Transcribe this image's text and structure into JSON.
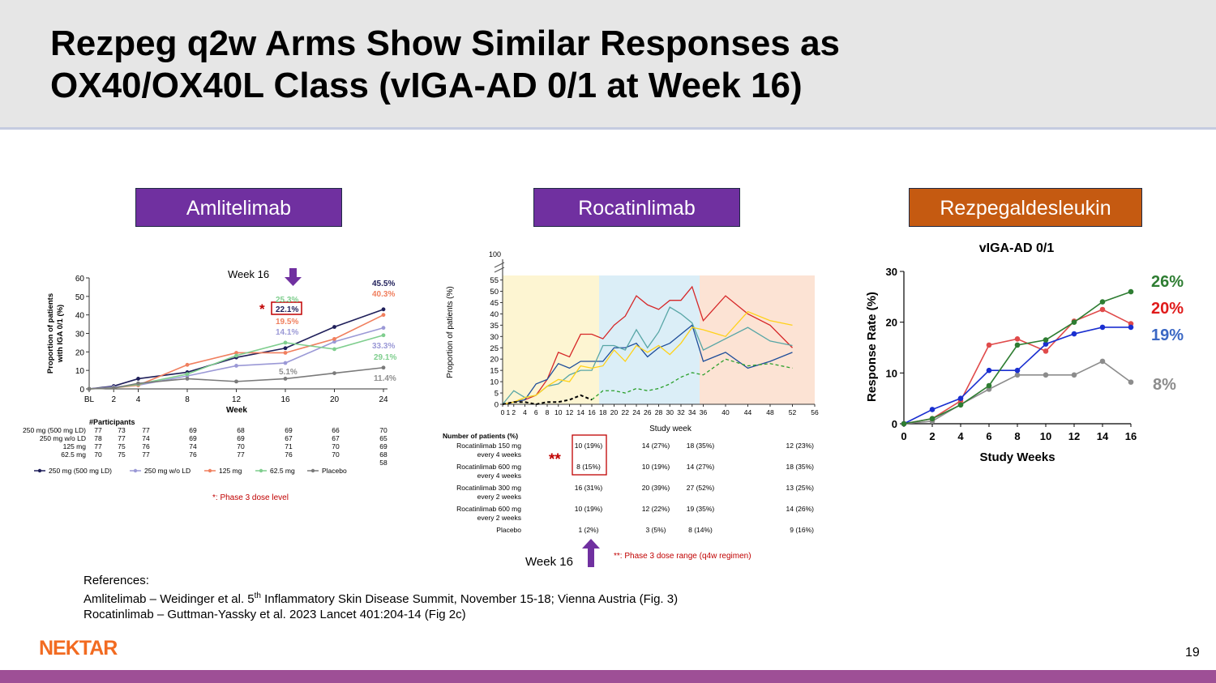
{
  "title": {
    "line1": "Rezpeg q2w Arms Show Similar Responses as",
    "line2": "OX40/OX40L Class (vIGA-AD 0/1 at Week 16)"
  },
  "panels": {
    "amlitelimab": "Amlitelimab",
    "rocatinlimab": "Rocatinlimab",
    "rezpeg": "Rezpegaldesleukin"
  },
  "colors": {
    "purple_label": "#7030a0",
    "orange_label": "#c55a11",
    "nektar": "#f26b21",
    "bottom_bar": "#9e4f96"
  },
  "amlitelimab": {
    "week16_label": "Week 16",
    "asterisk": "*",
    "ylabel_line1": "Proportion of patients",
    "ylabel_line2": "with IGA 0/1 (%)",
    "xlabel": "Week",
    "yticks": [
      "0",
      "10",
      "20",
      "30",
      "40",
      "50",
      "60"
    ],
    "xticks": [
      "BL",
      "2",
      "4",
      "8",
      "12",
      "16",
      "20",
      "24"
    ],
    "x": [
      0,
      2,
      4,
      8,
      12,
      16,
      20,
      24
    ],
    "series": [
      {
        "name": "250 mg (500 mg LD)",
        "color": "#1f1f5a",
        "values": [
          0,
          1.5,
          5.5,
          9,
          17,
          22,
          33.5,
          43
        ]
      },
      {
        "name": "250 mg w/o LD",
        "color": "#9b99d6",
        "values": [
          0,
          1,
          2,
          7,
          12.5,
          14,
          25.5,
          33
        ]
      },
      {
        "name": "125 mg",
        "color": "#f07f5e",
        "values": [
          0,
          0.5,
          2,
          13,
          19.5,
          19.5,
          27,
          40
        ]
      },
      {
        "name": "62.5 mg",
        "color": "#7fce8e",
        "values": [
          0,
          0.5,
          2.5,
          8,
          18,
          25,
          21.5,
          29
        ]
      },
      {
        "name": "Placebo",
        "color": "#7a7a7a",
        "values": [
          0,
          0.5,
          3,
          5.5,
          4,
          5.5,
          8.5,
          11.5
        ]
      }
    ],
    "w16_labels": [
      "25.3%",
      "22.1%",
      "19.5%",
      "14.1%",
      "5.1%"
    ],
    "w24_labels": [
      "45.5%",
      "40.3%",
      "33.3%",
      "29.1%",
      "11.4%"
    ],
    "participants_title": "#Participants",
    "participants": [
      {
        "label": "250 mg (500 mg LD)",
        "counts": [
          "77",
          "73",
          "77",
          "69",
          "68",
          "69",
          "66",
          "70"
        ]
      },
      {
        "label": "250 mg w/o LD",
        "counts": [
          "78",
          "77",
          "74",
          "69",
          "69",
          "67",
          "67",
          "65"
        ]
      },
      {
        "label": "125 mg",
        "counts": [
          "77",
          "75",
          "76",
          "74",
          "70",
          "71",
          "70",
          "69"
        ]
      },
      {
        "label": "62.5 mg",
        "counts": [
          "70",
          "75",
          "77",
          "76",
          "77",
          "76",
          "70",
          "68"
        ]
      },
      {
        "label": "",
        "counts": [
          "",
          "",
          "",
          "",
          "",
          "",
          "",
          "58"
        ]
      }
    ],
    "legend": [
      "250 mg (500 mg LD)",
      "250 mg w/o LD",
      "125 mg",
      "62.5 mg",
      "Placebo"
    ],
    "footnote": "*: Phase 3 dose level"
  },
  "rocatinlimab": {
    "ylabel": "Proportion of patients (%)",
    "xlabel": "Study week",
    "top_tick": "100",
    "yticks": [
      "0",
      "5",
      "10",
      "15",
      "20",
      "25",
      "30",
      "35",
      "40",
      "45",
      "50",
      "55"
    ],
    "xticks": [
      "0",
      "1",
      "2",
      "4",
      "6",
      "8",
      "10",
      "12",
      "14",
      "16",
      "18",
      "20",
      "22",
      "24",
      "26",
      "28",
      "30",
      "32",
      "34",
      "36",
      "40",
      "44",
      "48",
      "52",
      "56"
    ],
    "x": [
      0,
      2,
      4,
      6,
      8,
      10,
      12,
      14,
      16,
      18,
      20,
      22,
      24,
      26,
      28,
      30,
      32,
      34,
      36,
      40,
      44,
      48,
      52,
      56
    ],
    "series": [
      {
        "name": "Rocatinlimab 150 mg every 4 weeks",
        "color": "#d62728",
        "values": [
          0,
          1,
          2,
          4,
          11,
          23,
          21,
          31,
          31,
          29,
          35,
          39,
          48,
          44,
          42,
          46,
          46,
          52,
          37,
          48,
          40,
          35,
          25,
          null
        ]
      },
      {
        "name": "Rocatinlimab 600 mg every 4 weeks",
        "color": "#1f4e9a",
        "values": [
          0,
          1,
          2,
          9,
          11,
          18,
          16,
          19,
          19,
          19,
          25,
          25,
          27,
          21,
          25,
          27,
          31,
          35,
          19,
          23,
          16,
          19,
          23,
          null
        ]
      },
      {
        "name": "Rocatinlimab 300 mg every 2 weeks",
        "color": "#58a6a6",
        "values": [
          0,
          6,
          3,
          4,
          8,
          9,
          13,
          15,
          15,
          26,
          26,
          24,
          33,
          25,
          32,
          43,
          40,
          36,
          24,
          29,
          34,
          28,
          26,
          null
        ]
      },
      {
        "name": "Rocatinlimab 600 mg every 2 weeks",
        "color": "#ffd21a",
        "values": [
          0,
          1,
          3,
          4,
          8,
          11,
          10,
          17,
          16,
          17,
          24,
          19,
          26,
          23,
          26,
          22,
          27,
          34,
          33,
          30,
          41,
          37,
          35,
          null
        ]
      },
      {
        "name": "Placebo",
        "color": "#2ca02c",
        "values": [
          null,
          null,
          null,
          null,
          null,
          null,
          null,
          null,
          2,
          6,
          6,
          5,
          7,
          6,
          7,
          9,
          12,
          14,
          13,
          20,
          17,
          18,
          16,
          null
        ]
      },
      {
        "name": "Placebo (early)",
        "color": "#000000",
        "values": [
          0,
          1,
          1,
          0,
          1,
          1,
          2,
          4,
          2,
          null,
          null,
          null,
          null,
          null,
          null,
          null,
          null,
          null,
          null,
          null,
          null,
          null,
          null,
          null
        ]
      }
    ],
    "table_header": "Number of patients (%)",
    "table_rows": [
      {
        "label1": "Rocatinlimab 150 mg",
        "label2": "every 4 weeks",
        "cells": [
          "10 (19%)",
          "14 (27%)",
          "18 (35%)",
          "12 (23%)"
        ]
      },
      {
        "label1": "Rocatinlimab 600 mg",
        "label2": "every 4 weeks",
        "cells": [
          "8 (15%)",
          "10 (19%)",
          "14 (27%)",
          "18 (35%)"
        ]
      },
      {
        "label1": "Rocatinlimab 300 mg",
        "label2": "every 2 weeks",
        "cells": [
          "16 (31%)",
          "20 (39%)",
          "27 (52%)",
          "13 (25%)"
        ]
      },
      {
        "label1": "Rocatinlimab 600 mg",
        "label2": "every 2 weeks",
        "cells": [
          "10 (19%)",
          "12 (22%)",
          "19 (35%)",
          "14 (26%)"
        ]
      },
      {
        "label1": "Placebo",
        "label2": "",
        "cells": [
          "1 (2%)",
          "3 (5%)",
          "8 (14%)",
          "9 (16%)"
        ]
      }
    ],
    "double_asterisk": "**",
    "week16_label": "Week 16",
    "footnote": "**: Phase 3 dose range (q4w regimen)"
  },
  "chart_data": {
    "type": "line",
    "title": "vIGA-AD 0/1",
    "xlabel": "Study Weeks",
    "ylabel": "Response Rate (%)",
    "x": [
      0,
      2,
      4,
      6,
      8,
      10,
      12,
      14,
      16
    ],
    "xlim": [
      0,
      16
    ],
    "ylim": [
      0,
      30
    ],
    "yticks": [
      "0",
      "10",
      "20",
      "30"
    ],
    "xticks": [
      "0",
      "2",
      "4",
      "6",
      "8",
      "10",
      "12",
      "14",
      "16"
    ],
    "series": [
      {
        "color": "#2e7d32",
        "end_label": "26%",
        "values": [
          0,
          1,
          3.7,
          7.5,
          15.5,
          16.5,
          20,
          24,
          26
        ]
      },
      {
        "color": "#e04b4b",
        "end_label": "20%",
        "values": [
          0,
          1,
          4.5,
          15.5,
          16.7,
          14.3,
          20.2,
          22.5,
          19.7
        ]
      },
      {
        "color": "#1a2fd0",
        "end_label": "19%",
        "values": [
          0,
          2.8,
          5,
          10.5,
          10.5,
          15.7,
          17.7,
          19,
          19
        ]
      },
      {
        "color": "#8c8c8c",
        "end_label": "8%",
        "values": [
          0,
          0.5,
          3.8,
          6.8,
          9.6,
          9.6,
          9.6,
          12.3,
          8.2
        ]
      }
    ]
  },
  "references": {
    "heading": "References:",
    "line1_a": "Amlitelimab – Weidinger et al. 5",
    "line1_sup": "th",
    "line1_b": " Inflammatory Skin Disease Summit, November 15-18; Vienna Austria (Fig. 3)",
    "line2": "Rocatinlimab – Guttman-Yassky et al. 2023 Lancet 401:204-14 (Fig 2c)"
  },
  "logo": "NEKTAR",
  "page_number": "19"
}
